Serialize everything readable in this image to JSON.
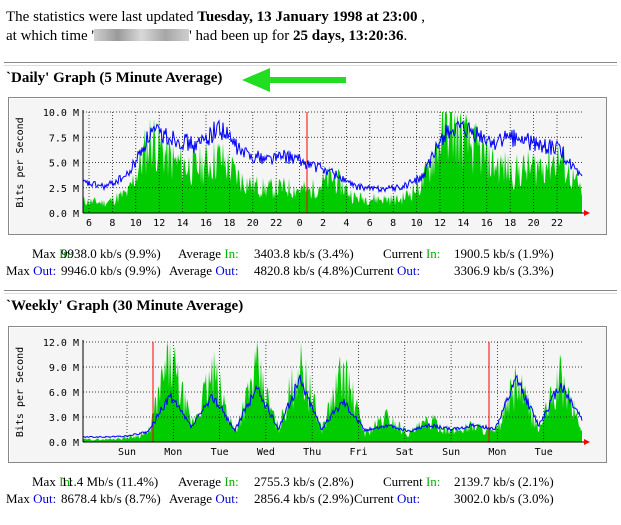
{
  "intro": {
    "line1_prefix": "The statistics were last updated",
    "updated": "Tuesday, 13 January 1998 at 23:00",
    "line1_suffix": ",",
    "line2_prefix": "at which time '",
    "line2_mid": "' had been up for",
    "uptime": "25 days, 13:20:36",
    "line2_suffix": "."
  },
  "daily": {
    "title": "`Daily' Graph (5 Minute Average)",
    "stats": {
      "max_label": "Max",
      "avg_label": "Average",
      "cur_label": "Current",
      "in_word": "In:",
      "out_word": "Out:",
      "max_in": "9938.0 kb/s (9.9%)",
      "avg_in": "3403.8 kb/s (3.4%)",
      "cur_in": "1900.5 kb/s (1.9%)",
      "max_out": "9946.0 kb/s (9.9%)",
      "avg_out": "4820.8 kb/s (4.8%)",
      "cur_out": "3306.9 kb/s (3.3%)"
    }
  },
  "weekly": {
    "title": "`Weekly' Graph (30 Minute Average)",
    "stats": {
      "max_label": "Max",
      "avg_label": "Average",
      "cur_label": "Current",
      "in_word": "In:",
      "out_word": "Out:",
      "max_in": "11.4 Mb/s (11.4%)",
      "avg_in": "2755.3 kb/s (2.8%)",
      "cur_in": "2139.7 kb/s (2.1%)",
      "max_out": "8678.4 kb/s (8.7%)",
      "avg_out": "2856.4 kb/s (2.9%)",
      "cur_out": "3002.0 kb/s (3.0%)"
    }
  },
  "colors": {
    "in_fill": "#00cc00",
    "out_line": "#0000ff",
    "grid": "#000000",
    "marker": "#ff0000",
    "arrow": "#22dd22"
  },
  "chart_data": [
    {
      "type": "area",
      "title": "`Daily' Graph (5 Minute Average)",
      "ylabel": "Bits per Second",
      "yticks": [
        "0.0 M",
        "2.5 M",
        "5.0 M",
        "7.5 M",
        "10.0 M"
      ],
      "ylim": [
        0,
        10
      ],
      "xticks": [
        "6",
        "8",
        "10",
        "12",
        "14",
        "16",
        "18",
        "20",
        "22",
        "0",
        "2",
        "4",
        "6",
        "8",
        "10",
        "12",
        "14",
        "16",
        "18",
        "20",
        "22"
      ],
      "x_hours_elapsed": [
        0,
        2,
        4,
        6,
        8,
        10,
        12,
        14,
        16,
        18,
        20,
        22,
        24,
        26,
        28,
        30,
        32,
        34,
        36,
        38,
        40,
        42,
        44
      ],
      "series": [
        {
          "name": "In",
          "values": [
            1.2,
            1.0,
            2.0,
            7.5,
            5.0,
            4.5,
            5.5,
            3.2,
            2.4,
            2.5,
            2.2,
            3.5,
            1.5,
            1.4,
            1.3,
            3.0,
            9.0,
            6.8,
            5.0,
            4.0,
            4.6,
            5.5,
            2.0
          ]
        },
        {
          "name": "Out",
          "values": [
            3.0,
            2.6,
            3.8,
            8.0,
            7.5,
            6.6,
            8.5,
            6.0,
            5.4,
            5.6,
            4.8,
            4.0,
            2.6,
            2.4,
            2.5,
            3.6,
            8.2,
            8.0,
            7.0,
            7.5,
            6.8,
            6.3,
            3.3
          ]
        }
      ]
    },
    {
      "type": "area",
      "title": "`Weekly' Graph (30 Minute Average)",
      "ylabel": "Bits per Second",
      "yticks": [
        "0.0 M",
        "3.0 M",
        "6.0 M",
        "9.0 M",
        "12.0 M"
      ],
      "ylim": [
        0,
        12
      ],
      "xticks": [
        "Sun",
        "Mon",
        "Tue",
        "Wed",
        "Thu",
        "Fri",
        "Sat",
        "Sun",
        "Mon",
        "Tue"
      ],
      "series": [
        {
          "name": "In",
          "values": [
            0.3,
            0.3,
            0.5,
            1.0,
            10.0,
            2.0,
            8.0,
            1.2,
            8.5,
            1.5,
            9.5,
            1.5,
            8.5,
            1.0,
            3.0,
            1.0,
            2.5,
            1.2,
            2.0,
            1.0,
            7.0,
            1.5,
            7.5,
            1.5
          ]
        },
        {
          "name": "Out",
          "values": [
            0.6,
            0.6,
            0.7,
            1.2,
            5.5,
            1.8,
            5.5,
            1.4,
            6.5,
            1.6,
            7.5,
            1.6,
            5.0,
            1.4,
            2.0,
            1.3,
            2.0,
            1.5,
            2.0,
            1.6,
            7.5,
            2.0,
            7.0,
            2.8
          ]
        }
      ]
    }
  ]
}
